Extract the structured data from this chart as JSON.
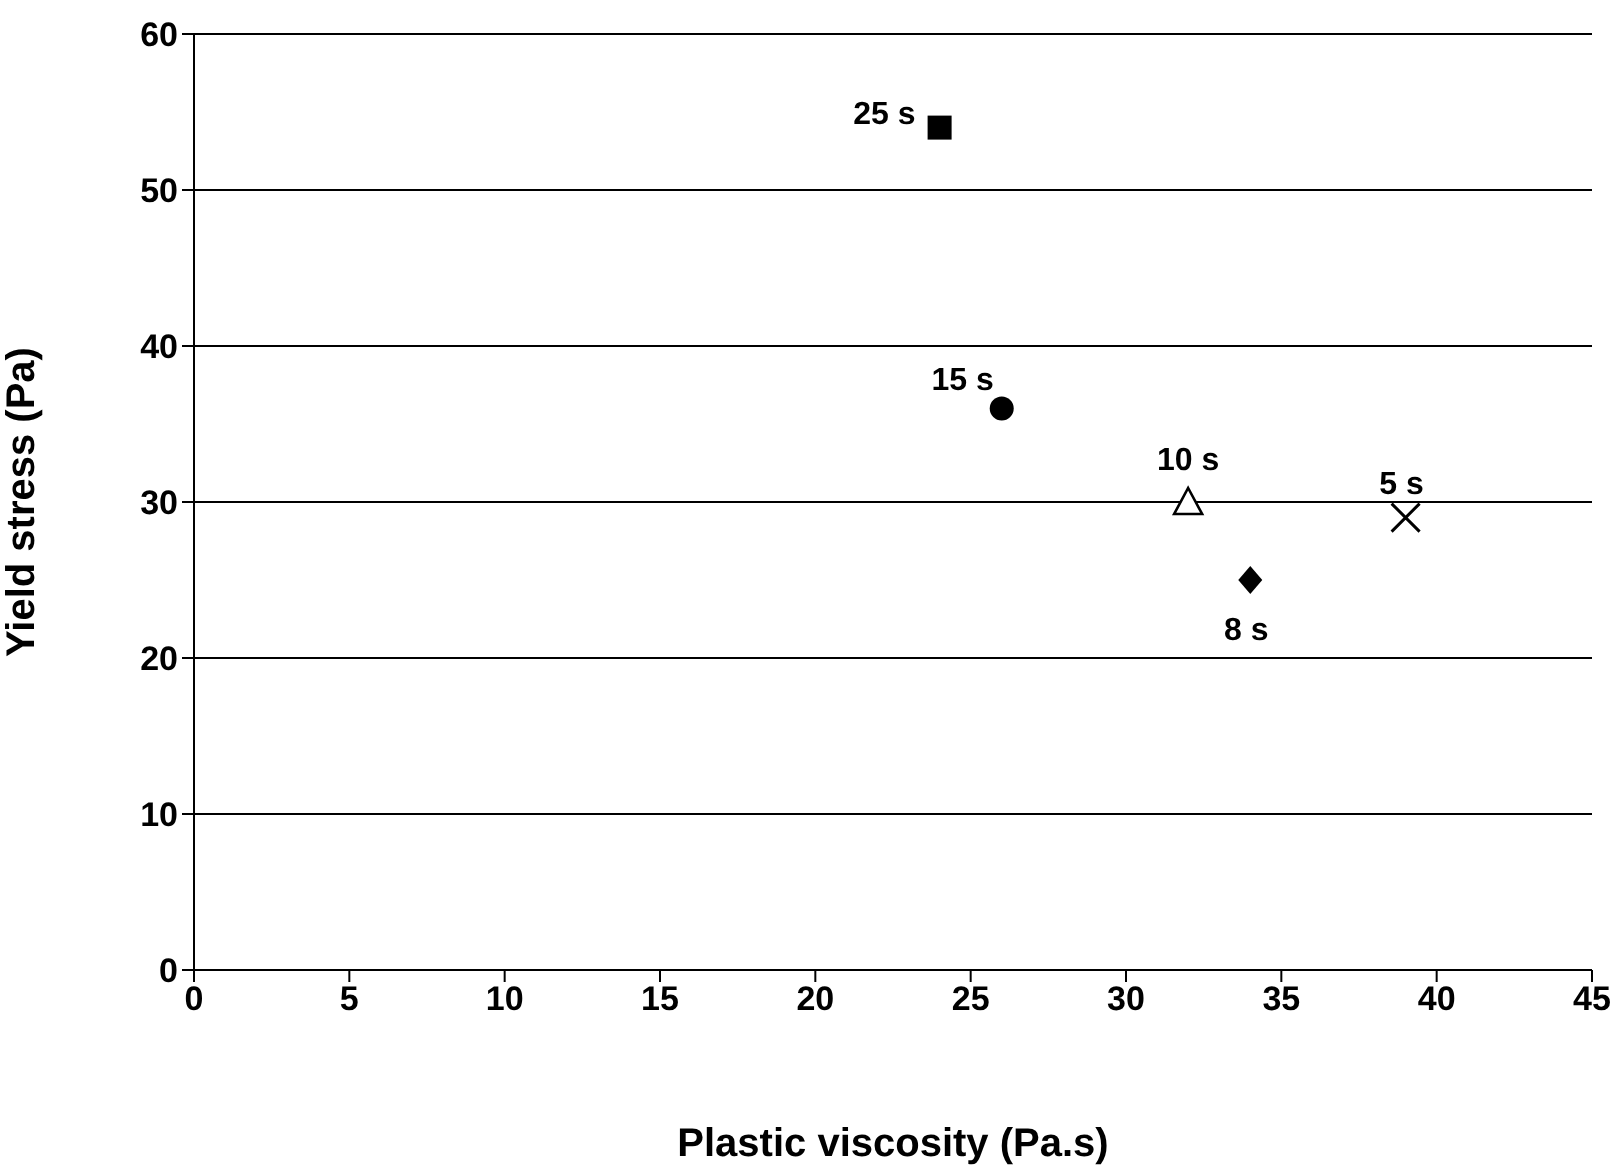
{
  "chart_data": {
    "type": "scatter",
    "xlabel": "Plastic viscosity (Pa.s)",
    "ylabel": "Yield stress (Pa)",
    "xlim": [
      0,
      45
    ],
    "xticks": [
      0,
      5,
      10,
      15,
      20,
      25,
      30,
      35,
      40,
      45
    ],
    "ylim": [
      0,
      60
    ],
    "yticks": [
      0,
      10,
      20,
      30,
      40,
      50,
      60
    ],
    "grid": "y",
    "legend": false,
    "series": [
      {
        "name": "25 s",
        "color": "#000000",
        "marker": "square",
        "x": [
          24
        ],
        "values": [
          54
        ]
      },
      {
        "name": "15 s",
        "color": "#000000",
        "marker": "circle",
        "x": [
          26
        ],
        "values": [
          36
        ]
      },
      {
        "name": "10 s",
        "color": "#000000",
        "marker": "triangle",
        "x": [
          32
        ],
        "values": [
          30
        ]
      },
      {
        "name": "8 s",
        "color": "#000000",
        "marker": "diamond",
        "x": [
          34
        ],
        "values": [
          25
        ]
      },
      {
        "name": "5 s",
        "color": "#000000",
        "marker": "cross",
        "x": [
          39
        ],
        "values": [
          29
        ]
      }
    ]
  }
}
